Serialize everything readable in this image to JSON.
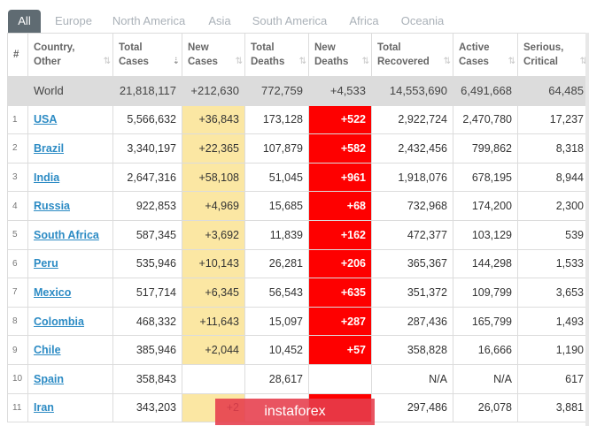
{
  "tabs": [
    {
      "label": "All",
      "active": true
    },
    {
      "label": "Europe"
    },
    {
      "label": "North America"
    },
    {
      "label": "Asia"
    },
    {
      "label": "South America"
    },
    {
      "label": "Africa"
    },
    {
      "label": "Oceania"
    }
  ],
  "headers": {
    "idx": "#",
    "country": [
      "Country,",
      "Other"
    ],
    "total_cases": [
      "Total",
      "Cases"
    ],
    "new_cases": [
      "New",
      "Cases"
    ],
    "total_deaths": [
      "Total",
      "Deaths"
    ],
    "new_deaths": [
      "New",
      "Deaths"
    ],
    "total_recovered": [
      "Total",
      "Recovered"
    ],
    "active_cases": [
      "Active",
      "Cases"
    ],
    "serious": [
      "Serious,",
      "Critical"
    ]
  },
  "world": {
    "country": "World",
    "total_cases": "21,818,117",
    "new_cases": "+212,630",
    "total_deaths": "772,759",
    "new_deaths": "+4,533",
    "total_recovered": "14,553,690",
    "active_cases": "6,491,668",
    "serious": "64,485"
  },
  "rows": [
    {
      "idx": "1",
      "country": "USA",
      "total_cases": "5,566,632",
      "new_cases": "+36,843",
      "total_deaths": "173,128",
      "new_deaths": "+522",
      "total_recovered": "2,922,724",
      "active_cases": "2,470,780",
      "serious": "17,237"
    },
    {
      "idx": "2",
      "country": "Brazil",
      "total_cases": "3,340,197",
      "new_cases": "+22,365",
      "total_deaths": "107,879",
      "new_deaths": "+582",
      "total_recovered": "2,432,456",
      "active_cases": "799,862",
      "serious": "8,318"
    },
    {
      "idx": "3",
      "country": "India",
      "total_cases": "2,647,316",
      "new_cases": "+58,108",
      "total_deaths": "51,045",
      "new_deaths": "+961",
      "total_recovered": "1,918,076",
      "active_cases": "678,195",
      "serious": "8,944"
    },
    {
      "idx": "4",
      "country": "Russia",
      "total_cases": "922,853",
      "new_cases": "+4,969",
      "total_deaths": "15,685",
      "new_deaths": "+68",
      "total_recovered": "732,968",
      "active_cases": "174,200",
      "serious": "2,300"
    },
    {
      "idx": "5",
      "country": "South Africa",
      "total_cases": "587,345",
      "new_cases": "+3,692",
      "total_deaths": "11,839",
      "new_deaths": "+162",
      "total_recovered": "472,377",
      "active_cases": "103,129",
      "serious": "539"
    },
    {
      "idx": "6",
      "country": "Peru",
      "total_cases": "535,946",
      "new_cases": "+10,143",
      "total_deaths": "26,281",
      "new_deaths": "+206",
      "total_recovered": "365,367",
      "active_cases": "144,298",
      "serious": "1,533"
    },
    {
      "idx": "7",
      "country": "Mexico",
      "total_cases": "517,714",
      "new_cases": "+6,345",
      "total_deaths": "56,543",
      "new_deaths": "+635",
      "total_recovered": "351,372",
      "active_cases": "109,799",
      "serious": "3,653"
    },
    {
      "idx": "8",
      "country": "Colombia",
      "total_cases": "468,332",
      "new_cases": "+11,643",
      "total_deaths": "15,097",
      "new_deaths": "+287",
      "total_recovered": "287,436",
      "active_cases": "165,799",
      "serious": "1,493"
    },
    {
      "idx": "9",
      "country": "Chile",
      "total_cases": "385,946",
      "new_cases": "+2,044",
      "total_deaths": "10,452",
      "new_deaths": "+57",
      "total_recovered": "358,828",
      "active_cases": "16,666",
      "serious": "1,190"
    },
    {
      "idx": "10",
      "country": "Spain",
      "total_cases": "358,843",
      "new_cases": "",
      "total_deaths": "28,617",
      "new_deaths": "",
      "total_recovered": "N/A",
      "active_cases": "N/A",
      "serious": "617"
    },
    {
      "idx": "11",
      "country": "Iran",
      "total_cases": "343,203",
      "new_cases": "+2",
      "total_deaths": "",
      "new_deaths": "",
      "total_recovered": "297,486",
      "active_cases": "26,078",
      "serious": "3,881"
    }
  ],
  "watermark": "instaforex",
  "colors": {
    "new_cases_bg": "#fbe7a3",
    "new_deaths_bg": "#fe0000",
    "link": "#2c8bc4",
    "active_tab": "#5f6b72"
  }
}
